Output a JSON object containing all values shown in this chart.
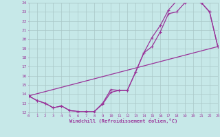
{
  "xlabel": "Windchill (Refroidissement éolien,°C)",
  "bg_color": "#c6e8e8",
  "grid_color": "#aac8c8",
  "line_color": "#993399",
  "xmin": 0,
  "xmax": 23,
  "ymin": 12,
  "ymax": 24,
  "line1_x": [
    0,
    1,
    2,
    3,
    4,
    5,
    6,
    7,
    8,
    9,
    10,
    11,
    12,
    13,
    14,
    15,
    16,
    17,
    18,
    19,
    20,
    21,
    22,
    23
  ],
  "line1_y": [
    13.8,
    13.3,
    13.0,
    12.5,
    12.7,
    12.2,
    12.1,
    12.1,
    12.1,
    13.0,
    14.5,
    14.4,
    14.4,
    16.4,
    18.5,
    19.2,
    20.8,
    22.8,
    23.0,
    24.0,
    24.2,
    24.0,
    23.0,
    19.2
  ],
  "line2_x": [
    0,
    1,
    2,
    3,
    4,
    5,
    6,
    7,
    8,
    9,
    10,
    11,
    12,
    13,
    14,
    15,
    16,
    17,
    18,
    19,
    20,
    21,
    22,
    23
  ],
  "line2_y": [
    13.8,
    13.3,
    13.0,
    12.5,
    12.7,
    12.2,
    12.1,
    12.1,
    12.1,
    12.9,
    14.2,
    14.4,
    14.4,
    16.4,
    18.5,
    20.2,
    21.5,
    23.2,
    24.2,
    24.5,
    24.4,
    24.0,
    23.0,
    19.2
  ],
  "line3_x": [
    0,
    23
  ],
  "line3_y": [
    13.8,
    19.2
  ]
}
